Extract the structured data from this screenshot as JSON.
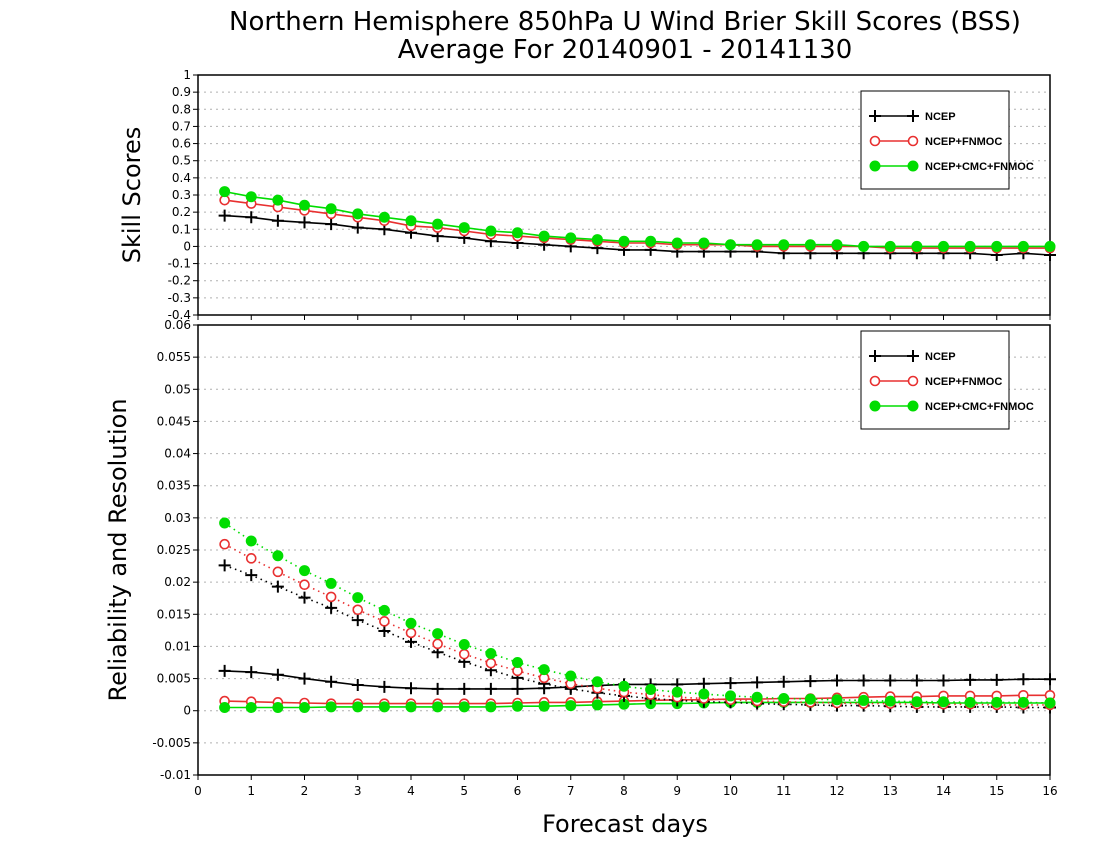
{
  "title": "Northern Hemisphere 850hPa U Wind Brier Skill Scores (BSS)",
  "subtitle": "Average For 20140901 - 20141130",
  "xlabel": "Forecast days",
  "colors": {
    "ncep": "#000000",
    "ncep_fnmoc": "#e83030",
    "ncep_cmc_fnmoc": "#00dd00"
  },
  "chart_data": [
    {
      "type": "line",
      "ylabel": "Skill Scores",
      "xlim": [
        0,
        16
      ],
      "ylim": [
        -0.4,
        1
      ],
      "yticks": [
        -0.4,
        -0.3,
        -0.2,
        -0.1,
        0,
        0.1,
        0.2,
        0.3,
        0.4,
        0.5,
        0.6,
        0.7,
        0.8,
        0.9,
        1
      ],
      "ytick_labels": [
        "-0.4",
        "-0.3",
        "-0.2",
        "-0.1",
        "0",
        "0.1",
        "0.2",
        "0.3",
        "0.4",
        "0.5",
        "0.6",
        "0.7",
        "0.8",
        "0.9",
        "1"
      ],
      "grid": true,
      "legend_position": "top-right",
      "x": [
        0.5,
        1,
        1.5,
        2,
        2.5,
        3,
        3.5,
        4,
        4.5,
        5,
        5.5,
        6,
        6.5,
        7,
        7.5,
        8,
        8.5,
        9,
        9.5,
        10,
        10.5,
        11,
        11.5,
        12,
        12.5,
        13,
        13.5,
        14,
        14.5,
        15,
        15.5,
        16
      ],
      "series": [
        {
          "name": "NCEP",
          "color": "#000000",
          "marker": "plus",
          "style": "solid",
          "values": [
            0.18,
            0.17,
            0.15,
            0.14,
            0.13,
            0.11,
            0.1,
            0.08,
            0.06,
            0.05,
            0.03,
            0.02,
            0.01,
            0.0,
            -0.01,
            -0.02,
            -0.02,
            -0.03,
            -0.03,
            -0.03,
            -0.03,
            -0.04,
            -0.04,
            -0.04,
            -0.04,
            -0.04,
            -0.04,
            -0.04,
            -0.04,
            -0.05,
            -0.04,
            -0.05
          ]
        },
        {
          "name": "NCEP+FNMOC",
          "color": "#e83030",
          "marker": "open-circle",
          "style": "solid",
          "values": [
            0.27,
            0.25,
            0.23,
            0.21,
            0.19,
            0.17,
            0.15,
            0.12,
            0.11,
            0.09,
            0.07,
            0.06,
            0.05,
            0.04,
            0.03,
            0.02,
            0.02,
            0.01,
            0.01,
            0.01,
            0.0,
            0.0,
            0.0,
            0.0,
            0.0,
            -0.01,
            -0.01,
            -0.01,
            -0.01,
            -0.01,
            -0.01,
            -0.01
          ]
        },
        {
          "name": "NCEP+CMC+FNMOC",
          "color": "#00dd00",
          "marker": "filled-circle",
          "style": "solid",
          "values": [
            0.32,
            0.29,
            0.27,
            0.24,
            0.22,
            0.19,
            0.17,
            0.15,
            0.13,
            0.11,
            0.09,
            0.08,
            0.06,
            0.05,
            0.04,
            0.03,
            0.03,
            0.02,
            0.02,
            0.01,
            0.01,
            0.01,
            0.01,
            0.01,
            0.0,
            0.0,
            0.0,
            0.0,
            0.0,
            0.0,
            0.0,
            0.0
          ]
        }
      ]
    },
    {
      "type": "line",
      "ylabel": "Reliability and Resolution",
      "xlim": [
        0,
        16
      ],
      "ylim": [
        -0.01,
        0.06
      ],
      "yticks": [
        -0.01,
        -0.005,
        0,
        0.005,
        0.01,
        0.015,
        0.02,
        0.025,
        0.03,
        0.035,
        0.04,
        0.045,
        0.05,
        0.055,
        0.06
      ],
      "ytick_labels": [
        "-0.01",
        "-0.005",
        "0",
        "0.005",
        "0.01",
        "0.015",
        "0.02",
        "0.025",
        "0.03",
        "0.035",
        "0.04",
        "0.045",
        "0.05",
        "0.055",
        "0.06"
      ],
      "xticks": [
        0,
        1,
        2,
        3,
        4,
        5,
        6,
        7,
        8,
        9,
        10,
        11,
        12,
        13,
        14,
        15,
        16
      ],
      "xtick_labels": [
        "0",
        "1",
        "2",
        "3",
        "4",
        "5",
        "6",
        "7",
        "8",
        "9",
        "10",
        "11",
        "12",
        "13",
        "14",
        "15",
        "16"
      ],
      "grid": true,
      "legend_position": "top-right",
      "x": [
        0.5,
        1,
        1.5,
        2,
        2.5,
        3,
        3.5,
        4,
        4.5,
        5,
        5.5,
        6,
        6.5,
        7,
        7.5,
        8,
        8.5,
        9,
        9.5,
        10,
        10.5,
        11,
        11.5,
        12,
        12.5,
        13,
        13.5,
        14,
        14.5,
        15,
        15.5,
        16
      ],
      "series": [
        {
          "name": "NCEP",
          "color": "#000000",
          "marker": "plus",
          "style": "solid",
          "legend": true,
          "values": [
            0.0062,
            0.006,
            0.0056,
            0.005,
            0.0045,
            0.004,
            0.0037,
            0.0035,
            0.0034,
            0.0034,
            0.0034,
            0.0034,
            0.0035,
            0.0037,
            0.0039,
            0.0041,
            0.0041,
            0.0041,
            0.0042,
            0.0043,
            0.0044,
            0.0045,
            0.0046,
            0.0047,
            0.0047,
            0.0047,
            0.0047,
            0.0047,
            0.0048,
            0.0048,
            0.0049,
            0.0049
          ]
        },
        {
          "name": "NCEP+FNMOC",
          "color": "#e83030",
          "marker": "open-circle",
          "style": "solid",
          "legend": true,
          "values": [
            0.0015,
            0.0014,
            0.0013,
            0.0012,
            0.0011,
            0.0011,
            0.0011,
            0.0011,
            0.0011,
            0.0011,
            0.0011,
            0.0012,
            0.0013,
            0.0013,
            0.0014,
            0.0015,
            0.0016,
            0.0017,
            0.0017,
            0.0018,
            0.0018,
            0.0019,
            0.0019,
            0.002,
            0.0021,
            0.0022,
            0.0022,
            0.0023,
            0.0023,
            0.0023,
            0.0024,
            0.0024
          ]
        },
        {
          "name": "NCEP+CMC+FNMOC",
          "color": "#00dd00",
          "marker": "filled-circle",
          "style": "solid",
          "legend": true,
          "values": [
            0.0005,
            0.0005,
            0.0005,
            0.0005,
            0.0006,
            0.0006,
            0.0006,
            0.0006,
            0.0006,
            0.0006,
            0.0006,
            0.0007,
            0.0007,
            0.0008,
            0.0009,
            0.001,
            0.0011,
            0.0011,
            0.0012,
            0.0013,
            0.0013,
            0.0013,
            0.0013,
            0.0013,
            0.0013,
            0.0013,
            0.0013,
            0.0012,
            0.0012,
            0.0012,
            0.0012,
            0.0012
          ]
        },
        {
          "name": "",
          "color": "#000000",
          "marker": "plus",
          "style": "dotted",
          "legend": false,
          "values": [
            0.0226,
            0.0211,
            0.0193,
            0.0176,
            0.016,
            0.0141,
            0.0124,
            0.0107,
            0.0091,
            0.0076,
            0.0063,
            0.0051,
            0.0042,
            0.0034,
            0.0028,
            0.0023,
            0.0019,
            0.0016,
            0.0014,
            0.0013,
            0.0011,
            0.001,
            0.0009,
            0.0008,
            0.0008,
            0.0007,
            0.0006,
            0.0006,
            0.0006,
            0.0006,
            0.0005,
            0.0005
          ]
        },
        {
          "name": "",
          "color": "#e83030",
          "marker": "open-circle",
          "style": "dotted",
          "legend": false,
          "values": [
            0.0259,
            0.0237,
            0.0216,
            0.0196,
            0.0177,
            0.0157,
            0.0139,
            0.0121,
            0.0104,
            0.0088,
            0.0074,
            0.0062,
            0.0051,
            0.0042,
            0.0035,
            0.0029,
            0.0025,
            0.0021,
            0.0019,
            0.0017,
            0.0015,
            0.0014,
            0.0013,
            0.0012,
            0.0011,
            0.0011,
            0.001,
            0.001,
            0.001,
            0.0009,
            0.0009,
            0.0009
          ]
        },
        {
          "name": "",
          "color": "#00dd00",
          "marker": "filled-circle",
          "style": "dotted",
          "legend": false,
          "values": [
            0.0292,
            0.0264,
            0.0241,
            0.0218,
            0.0198,
            0.0176,
            0.0156,
            0.0136,
            0.012,
            0.0103,
            0.0089,
            0.0075,
            0.0064,
            0.0054,
            0.0045,
            0.0038,
            0.0033,
            0.0029,
            0.0026,
            0.0023,
            0.0021,
            0.0019,
            0.0018,
            0.0017,
            0.0016,
            0.0015,
            0.0014,
            0.0014,
            0.0013,
            0.0013,
            0.0013,
            0.0012
          ]
        }
      ]
    }
  ]
}
